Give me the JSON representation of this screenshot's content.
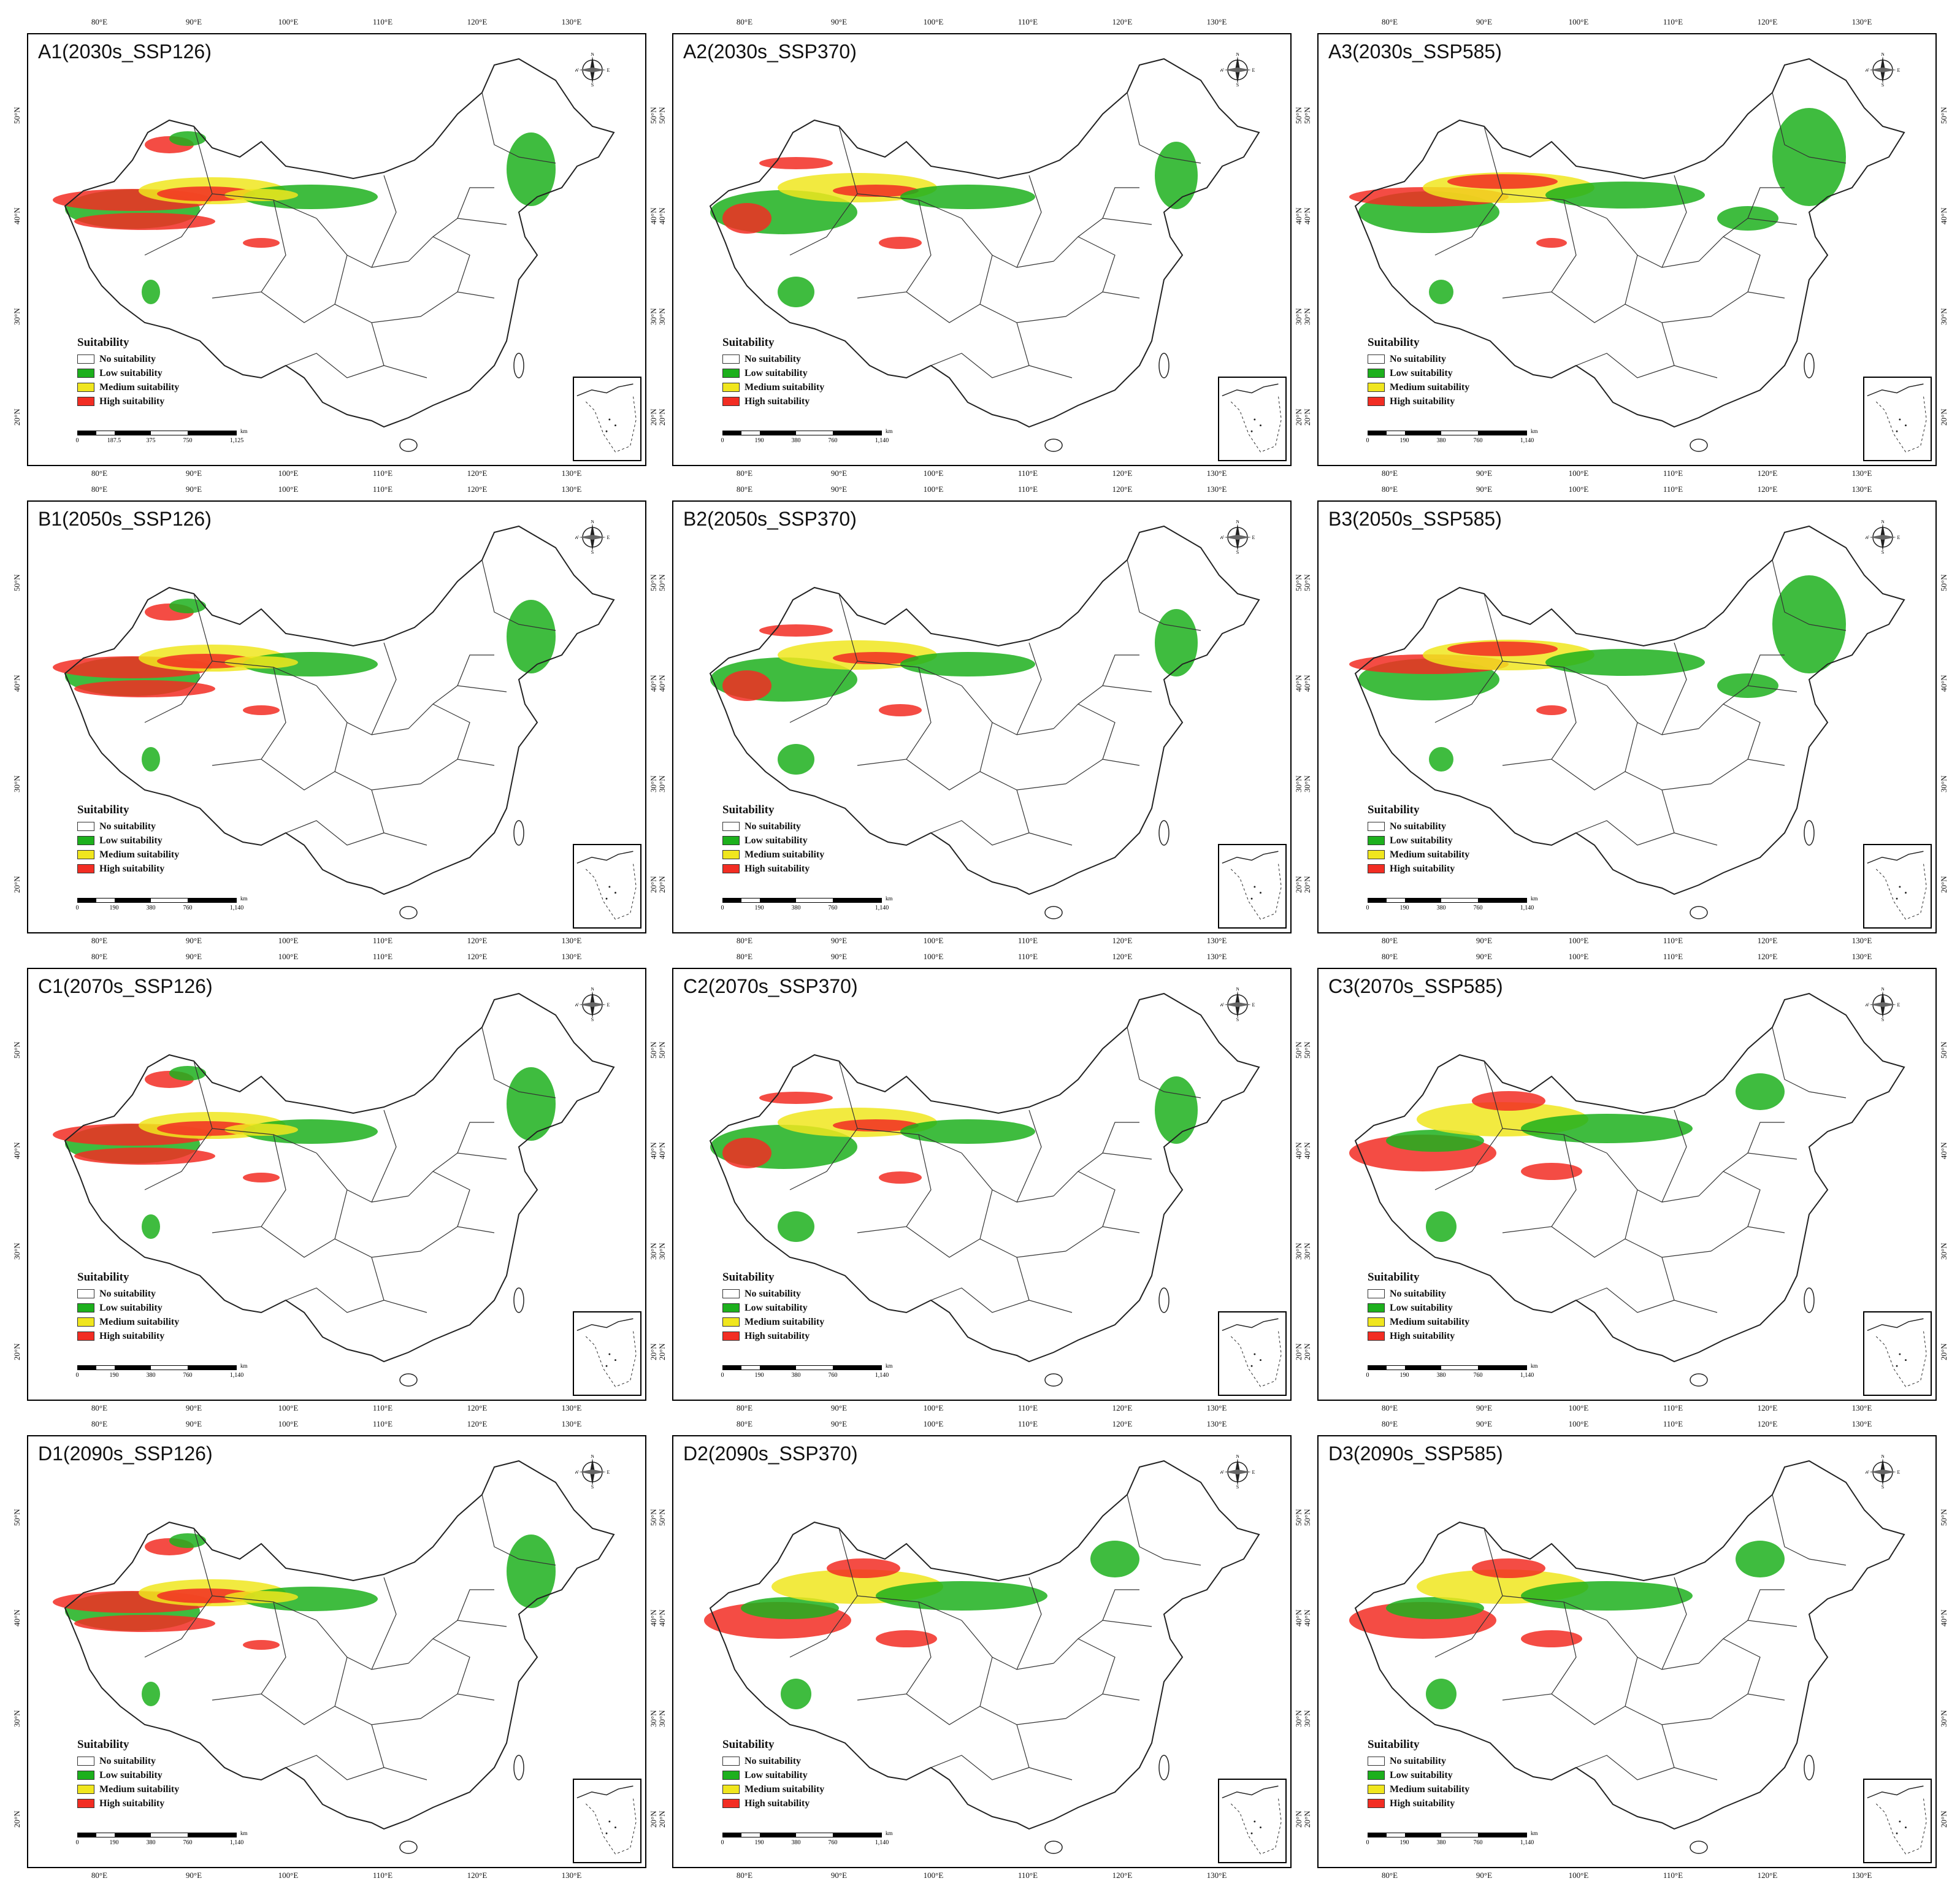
{
  "figure": {
    "panels": [
      {
        "id": "A1",
        "title": "A1(2030s_SSP126)",
        "pattern": 0
      },
      {
        "id": "A2",
        "title": "A2(2030s_SSP370)",
        "pattern": 1
      },
      {
        "id": "A3",
        "title": "A3(2030s_SSP585)",
        "pattern": 2
      },
      {
        "id": "B1",
        "title": "B1(2050s_SSP126)",
        "pattern": 0
      },
      {
        "id": "B2",
        "title": "B2(2050s_SSP370)",
        "pattern": 1
      },
      {
        "id": "B3",
        "title": "B3(2050s_SSP585)",
        "pattern": 2
      },
      {
        "id": "C1",
        "title": "C1(2070s_SSP126)",
        "pattern": 0
      },
      {
        "id": "C2",
        "title": "C2(2070s_SSP370)",
        "pattern": 1
      },
      {
        "id": "C3",
        "title": "C3(2070s_SSP585)",
        "pattern": 3
      },
      {
        "id": "D1",
        "title": "D1(2090s_SSP126)",
        "pattern": 0
      },
      {
        "id": "D2",
        "title": "D2(2090s_SSP370)",
        "pattern": 3
      },
      {
        "id": "D3",
        "title": "D3(2090s_SSP585)",
        "pattern": 3
      }
    ],
    "lon_labels": [
      "80°E",
      "90°E",
      "100°E",
      "110°E",
      "120°E",
      "130°E"
    ],
    "lat_labels": [
      "50°N",
      "40°N",
      "30°N",
      "20°N"
    ],
    "legend": {
      "title": "Suitability",
      "items": [
        {
          "label": "No suitability",
          "color": "#ffffff"
        },
        {
          "label": "Low suitability",
          "color": "#1db01d"
        },
        {
          "label": "Medium suitability",
          "color": "#f0e61e"
        },
        {
          "label": "High suitability",
          "color": "#f22d23"
        }
      ]
    },
    "scale_first": {
      "unit": "km",
      "ticks": [
        "0",
        "187.5",
        "375",
        "750",
        "1,125"
      ]
    },
    "scale_other": {
      "unit": "km",
      "ticks": [
        "0",
        "190",
        "380",
        "760",
        "1,140"
      ]
    },
    "compass": {
      "n": "N",
      "s": "S",
      "e": "E",
      "w": "W"
    },
    "colors": {
      "border": "#000000",
      "low": "#1db01d",
      "medium": "#f0e61e",
      "high": "#f22d23"
    }
  }
}
